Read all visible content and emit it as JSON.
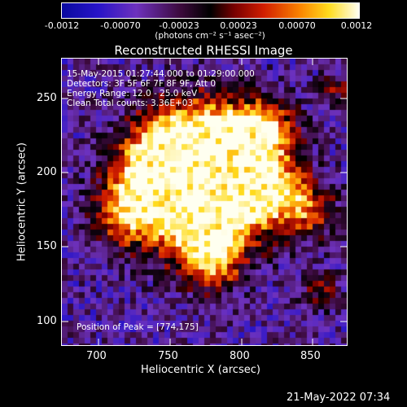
{
  "colorbar": {
    "ticks": [
      "-0.0012",
      "-0.00070",
      "-0.00023",
      "0.00023",
      "0.00070",
      "0.0012"
    ],
    "unit_label": "(photons cm⁻² s⁻¹ asec⁻²)"
  },
  "title": "Reconstructed RHESSI Image",
  "info": {
    "time_range": "15-May-2015 01:27:44.000 to 01:29:00.000",
    "detectors": "Detectors: 3F 5F 6F 7F 8F 9F, Att 0",
    "energy": "Energy Range: 12.0 - 25.0 keV",
    "clean": "Clean    Total counts: 3.36E+03",
    "peak": "Position of Peak = [774,175]"
  },
  "axes": {
    "xlabel": "Heliocentric X (arcsec)",
    "ylabel": "Heliocentric Y (arcsec)",
    "xticks": [
      "700",
      "750",
      "800",
      "850"
    ],
    "yticks": [
      "250",
      "200",
      "150",
      "100"
    ]
  },
  "footer_timestamp": "21-May-2022 07:34"
}
